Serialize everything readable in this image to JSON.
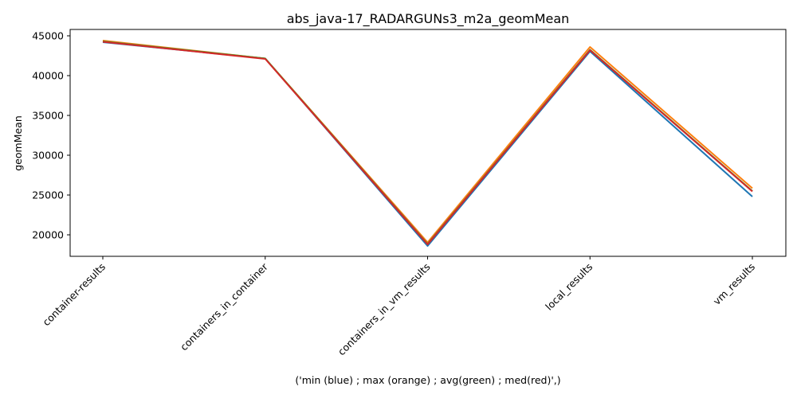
{
  "chart_data": {
    "type": "line",
    "title": "abs_java-17_RADARGUNs3_m2a_geomMean",
    "xlabel": "('min (blue) ; max (orange) ; avg(green) ; med(red)',)",
    "ylabel": "geomMean",
    "categories": [
      "container-results",
      "containers_in_container",
      "containers_in_vm_results",
      "local_results",
      "vm_results"
    ],
    "yticks": [
      20000,
      25000,
      30000,
      35000,
      40000,
      45000
    ],
    "ylim": [
      17300,
      45800
    ],
    "grid": false,
    "series": [
      {
        "color": "#1f77b4",
        "values": [
          44200,
          42150,
          18600,
          43050,
          24800
        ]
      },
      {
        "color": "#ff7f0e",
        "values": [
          44400,
          42150,
          19050,
          43600,
          25850
        ]
      },
      {
        "color": "#2ca02c",
        "values": [
          44300,
          42150,
          18850,
          43250,
          25500
        ]
      },
      {
        "color": "#d62728",
        "values": [
          44250,
          42100,
          18800,
          43200,
          25450
        ]
      }
    ]
  }
}
